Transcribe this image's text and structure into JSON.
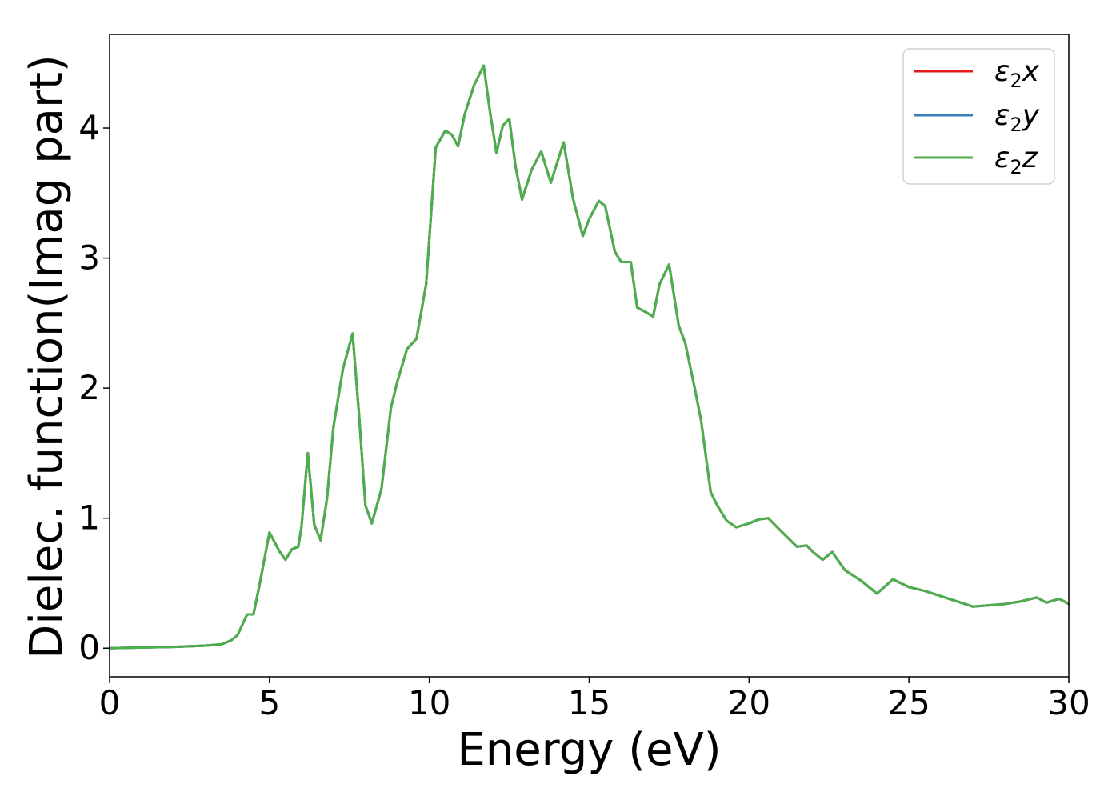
{
  "chart_data": {
    "type": "line",
    "title": "",
    "xlabel": "Energy (eV)",
    "ylabel": "Dielec. function(Imag part)",
    "xlim": [
      0,
      30
    ],
    "ylim": [
      -0.22,
      4.72
    ],
    "x_ticks": [
      0,
      5,
      10,
      15,
      20,
      25,
      30
    ],
    "y_ticks": [
      0,
      1,
      2,
      3,
      4
    ],
    "grid": false,
    "legend_position": "top-right",
    "series": [
      {
        "name": "ε2x",
        "name_base": "ε",
        "name_sub": "2",
        "name_suffix": "x",
        "color": "#e41a1c",
        "x": [
          0,
          1,
          2,
          3,
          3.5,
          3.8,
          4.0,
          4.3,
          4.5,
          4.7,
          5.0,
          5.3,
          5.5,
          5.7,
          5.9,
          6.0,
          6.2,
          6.4,
          6.6,
          6.8,
          7.0,
          7.3,
          7.6,
          7.8,
          8.0,
          8.2,
          8.5,
          8.8,
          9.0,
          9.3,
          9.6,
          9.9,
          10.2,
          10.5,
          10.7,
          10.9,
          11.1,
          11.4,
          11.7,
          11.9,
          12.1,
          12.3,
          12.5,
          12.7,
          12.9,
          13.2,
          13.5,
          13.8,
          14.2,
          14.5,
          14.8,
          15.0,
          15.3,
          15.5,
          15.8,
          16.0,
          16.3,
          16.5,
          16.8,
          17.0,
          17.2,
          17.5,
          17.8,
          18.0,
          18.3,
          18.5,
          18.8,
          19.0,
          19.3,
          19.6,
          20.0,
          20.3,
          20.6,
          21.0,
          21.5,
          21.8,
          22.0,
          22.3,
          22.6,
          23.0,
          23.5,
          24.0,
          24.5,
          25.0,
          25.5,
          26.0,
          26.5,
          27.0,
          27.5,
          28.0,
          28.5,
          29.0,
          29.3,
          29.7,
          30.0
        ],
        "y": [
          0.0,
          0.005,
          0.01,
          0.02,
          0.03,
          0.06,
          0.1,
          0.26,
          0.26,
          0.5,
          0.89,
          0.75,
          0.68,
          0.76,
          0.78,
          0.93,
          1.5,
          0.95,
          0.83,
          1.15,
          1.7,
          2.15,
          2.42,
          1.8,
          1.1,
          0.96,
          1.22,
          1.85,
          2.05,
          2.3,
          2.38,
          2.8,
          3.85,
          3.98,
          3.95,
          3.86,
          4.1,
          4.33,
          4.48,
          4.12,
          3.81,
          4.02,
          4.07,
          3.7,
          3.45,
          3.68,
          3.82,
          3.58,
          3.89,
          3.45,
          3.17,
          3.3,
          3.44,
          3.4,
          3.05,
          2.97,
          2.97,
          2.62,
          2.58,
          2.55,
          2.8,
          2.95,
          2.48,
          2.35,
          2.0,
          1.75,
          1.2,
          1.1,
          0.98,
          0.93,
          0.96,
          0.99,
          1.0,
          0.9,
          0.78,
          0.79,
          0.74,
          0.68,
          0.74,
          0.6,
          0.52,
          0.42,
          0.53,
          0.47,
          0.44,
          0.4,
          0.36,
          0.32,
          0.33,
          0.34,
          0.36,
          0.39,
          0.35,
          0.38,
          0.34
        ]
      },
      {
        "name": "ε2y",
        "name_base": "ε",
        "name_sub": "2",
        "name_suffix": "y",
        "color": "#377eb8",
        "x": [
          0,
          1,
          2,
          3,
          3.5,
          3.8,
          4.0,
          4.3,
          4.5,
          4.7,
          5.0,
          5.3,
          5.5,
          5.7,
          5.9,
          6.0,
          6.2,
          6.4,
          6.6,
          6.8,
          7.0,
          7.3,
          7.6,
          7.8,
          8.0,
          8.2,
          8.5,
          8.8,
          9.0,
          9.3,
          9.6,
          9.9,
          10.2,
          10.5,
          10.7,
          10.9,
          11.1,
          11.4,
          11.7,
          11.9,
          12.1,
          12.3,
          12.5,
          12.7,
          12.9,
          13.2,
          13.5,
          13.8,
          14.2,
          14.5,
          14.8,
          15.0,
          15.3,
          15.5,
          15.8,
          16.0,
          16.3,
          16.5,
          16.8,
          17.0,
          17.2,
          17.5,
          17.8,
          18.0,
          18.3,
          18.5,
          18.8,
          19.0,
          19.3,
          19.6,
          20.0,
          20.3,
          20.6,
          21.0,
          21.5,
          21.8,
          22.0,
          22.3,
          22.6,
          23.0,
          23.5,
          24.0,
          24.5,
          25.0,
          25.5,
          26.0,
          26.5,
          27.0,
          27.5,
          28.0,
          28.5,
          29.0,
          29.3,
          29.7,
          30.0
        ],
        "y": [
          0.0,
          0.005,
          0.01,
          0.02,
          0.03,
          0.06,
          0.1,
          0.26,
          0.26,
          0.5,
          0.89,
          0.75,
          0.68,
          0.76,
          0.78,
          0.93,
          1.5,
          0.95,
          0.83,
          1.15,
          1.7,
          2.15,
          2.42,
          1.8,
          1.1,
          0.96,
          1.22,
          1.85,
          2.05,
          2.3,
          2.38,
          2.8,
          3.85,
          3.98,
          3.95,
          3.86,
          4.1,
          4.33,
          4.48,
          4.12,
          3.81,
          4.02,
          4.07,
          3.7,
          3.45,
          3.68,
          3.82,
          3.58,
          3.89,
          3.45,
          3.17,
          3.3,
          3.44,
          3.4,
          3.05,
          2.97,
          2.97,
          2.62,
          2.58,
          2.55,
          2.8,
          2.95,
          2.48,
          2.35,
          2.0,
          1.75,
          1.2,
          1.1,
          0.98,
          0.93,
          0.96,
          0.99,
          1.0,
          0.9,
          0.78,
          0.79,
          0.74,
          0.68,
          0.74,
          0.6,
          0.52,
          0.42,
          0.53,
          0.47,
          0.44,
          0.4,
          0.36,
          0.32,
          0.33,
          0.34,
          0.36,
          0.39,
          0.35,
          0.38,
          0.34
        ]
      },
      {
        "name": "ε2z",
        "name_base": "ε",
        "name_sub": "2",
        "name_suffix": "z",
        "color": "#4daf4a",
        "x": [
          0,
          1,
          2,
          3,
          3.5,
          3.8,
          4.0,
          4.3,
          4.5,
          4.7,
          5.0,
          5.3,
          5.5,
          5.7,
          5.9,
          6.0,
          6.2,
          6.4,
          6.6,
          6.8,
          7.0,
          7.3,
          7.6,
          7.8,
          8.0,
          8.2,
          8.5,
          8.8,
          9.0,
          9.3,
          9.6,
          9.9,
          10.2,
          10.5,
          10.7,
          10.9,
          11.1,
          11.4,
          11.7,
          11.9,
          12.1,
          12.3,
          12.5,
          12.7,
          12.9,
          13.2,
          13.5,
          13.8,
          14.2,
          14.5,
          14.8,
          15.0,
          15.3,
          15.5,
          15.8,
          16.0,
          16.3,
          16.5,
          16.8,
          17.0,
          17.2,
          17.5,
          17.8,
          18.0,
          18.3,
          18.5,
          18.8,
          19.0,
          19.3,
          19.6,
          20.0,
          20.3,
          20.6,
          21.0,
          21.5,
          21.8,
          22.0,
          22.3,
          22.6,
          23.0,
          23.5,
          24.0,
          24.5,
          25.0,
          25.5,
          26.0,
          26.5,
          27.0,
          27.5,
          28.0,
          28.5,
          29.0,
          29.3,
          29.7,
          30.0
        ],
        "y": [
          0.0,
          0.005,
          0.01,
          0.02,
          0.03,
          0.06,
          0.1,
          0.26,
          0.26,
          0.5,
          0.89,
          0.75,
          0.68,
          0.76,
          0.78,
          0.93,
          1.5,
          0.95,
          0.83,
          1.15,
          1.7,
          2.15,
          2.42,
          1.8,
          1.1,
          0.96,
          1.22,
          1.85,
          2.05,
          2.3,
          2.38,
          2.8,
          3.85,
          3.98,
          3.95,
          3.86,
          4.1,
          4.33,
          4.48,
          4.12,
          3.81,
          4.02,
          4.07,
          3.7,
          3.45,
          3.68,
          3.82,
          3.58,
          3.89,
          3.45,
          3.17,
          3.3,
          3.44,
          3.4,
          3.05,
          2.97,
          2.97,
          2.62,
          2.58,
          2.55,
          2.8,
          2.95,
          2.48,
          2.35,
          2.0,
          1.75,
          1.2,
          1.1,
          0.98,
          0.93,
          0.96,
          0.99,
          1.0,
          0.9,
          0.78,
          0.79,
          0.74,
          0.68,
          0.74,
          0.6,
          0.52,
          0.42,
          0.53,
          0.47,
          0.44,
          0.4,
          0.36,
          0.32,
          0.33,
          0.34,
          0.36,
          0.39,
          0.35,
          0.38,
          0.34
        ]
      }
    ]
  }
}
